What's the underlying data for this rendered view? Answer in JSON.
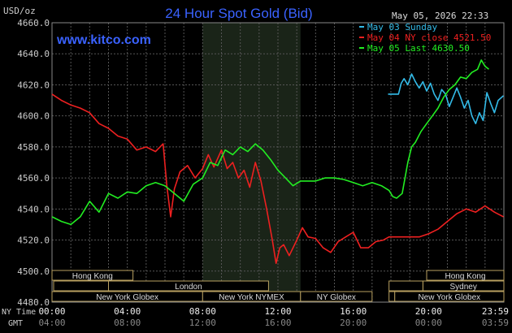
{
  "chart_data": {
    "type": "line",
    "title": "24 Hour Spot Gold (Bid)",
    "website": "www.kitco.com",
    "ylabel": "USD/oz",
    "timestamp": "May 05, 2026 22:33",
    "ylim": [
      4480,
      4660
    ],
    "y_ticks": [
      "4660.0",
      "4640.0",
      "4620.0",
      "4600.0",
      "4580.0",
      "4560.0",
      "4540.0",
      "4520.0",
      "4500.0",
      "4480.0"
    ],
    "xlim": [
      0,
      24
    ],
    "x_ticks_ny": [
      "00:00",
      "04:00",
      "08:00",
      "12:00",
      "16:00",
      "20:00",
      "23:59"
    ],
    "x_ticks_gmt": [
      "04:00",
      "08:00",
      "12:00",
      "16:00",
      "20:00",
      "00:00",
      "03:59"
    ],
    "x_tick_positions": [
      0,
      4,
      8,
      12,
      16,
      20,
      23.98
    ],
    "x_row_labels": {
      "ny": "NY Time",
      "gmt": "GMT"
    },
    "grid": true,
    "legend_position": "top-right",
    "shaded_session": [
      8.0,
      13.2
    ],
    "series": [
      {
        "name": "May 03 Sunday",
        "legend": "May 03 Sunday",
        "color": "#33bbe8",
        "x": [
          17.85,
          18.4,
          18.55,
          18.7,
          18.9,
          19.1,
          19.3,
          19.5,
          19.7,
          19.9,
          20.1,
          20.3,
          20.5,
          20.7,
          20.9,
          21.1,
          21.3,
          21.5,
          21.7,
          21.9,
          22.1,
          22.3,
          22.5,
          22.7,
          22.9,
          23.1,
          23.3,
          23.5,
          23.7,
          23.98
        ],
        "values": [
          4614,
          4614,
          4621,
          4624,
          4620,
          4627,
          4622,
          4618,
          4622,
          4616,
          4621,
          4614,
          4610,
          4617,
          4614,
          4606,
          4612,
          4618,
          4612,
          4605,
          4610,
          4600,
          4595,
          4602,
          4597,
          4615,
          4608,
          4602,
          4610,
          4613
        ]
      },
      {
        "name": "May 04 NY close 4521.50",
        "legend": "May 04 NY close 4521.50",
        "color": "#ee2020",
        "x": [
          0,
          0.5,
          1.0,
          1.5,
          2.0,
          2.5,
          3.0,
          3.5,
          4.0,
          4.5,
          5.0,
          5.5,
          5.9,
          6.1,
          6.3,
          6.5,
          6.8,
          7.2,
          7.6,
          8.0,
          8.3,
          8.6,
          9.0,
          9.3,
          9.6,
          9.9,
          10.2,
          10.5,
          10.8,
          11.1,
          11.4,
          11.7,
          11.9,
          12.1,
          12.3,
          12.6,
          13.0,
          13.3,
          13.6,
          14.0,
          14.4,
          14.8,
          15.2,
          15.6,
          16.0,
          16.4,
          16.8,
          17.2,
          17.6,
          17.9,
          18.3,
          18.7,
          19.1,
          19.5,
          20.0,
          20.5,
          21.0,
          21.5,
          22.0,
          22.5,
          23.0,
          23.5,
          23.98
        ],
        "values": [
          4614,
          4610,
          4607,
          4605,
          4602,
          4595,
          4592,
          4587,
          4585,
          4578,
          4580,
          4577,
          4582,
          4555,
          4535,
          4553,
          4564,
          4568,
          4560,
          4566,
          4575,
          4567,
          4578,
          4566,
          4570,
          4560,
          4565,
          4554,
          4570,
          4558,
          4540,
          4520,
          4505,
          4515,
          4517,
          4510,
          4520,
          4528,
          4522,
          4521,
          4515,
          4512,
          4519,
          4522,
          4525,
          4515,
          4515,
          4519,
          4520,
          4522,
          4522,
          4522,
          4522,
          4522,
          4524,
          4527,
          4532,
          4537,
          4540,
          4538,
          4542,
          4538,
          4535
        ]
      },
      {
        "name": "May 05 Last 4630.50",
        "legend": "May 05 Last 4630.50",
        "color": "#22ee22",
        "x": [
          0,
          0.5,
          1.0,
          1.5,
          2.0,
          2.5,
          3.0,
          3.5,
          4.0,
          4.5,
          5.0,
          5.5,
          6.0,
          6.5,
          7.0,
          7.5,
          8.0,
          8.4,
          8.8,
          9.2,
          9.6,
          10.0,
          10.4,
          10.8,
          11.2,
          11.6,
          12.0,
          12.4,
          12.8,
          13.2,
          13.6,
          14.0,
          14.5,
          15.0,
          15.5,
          16.0,
          16.5,
          17.0,
          17.5,
          17.9,
          18.1,
          18.3,
          18.6,
          18.9,
          19.1,
          19.3,
          19.6,
          19.9,
          20.2,
          20.5,
          20.8,
          21.1,
          21.4,
          21.7,
          22.0,
          22.3,
          22.6,
          22.8,
          23.0,
          23.2
        ],
        "values": [
          4535,
          4532,
          4530,
          4535,
          4545,
          4538,
          4550,
          4547,
          4551,
          4550,
          4555,
          4557,
          4555,
          4550,
          4545,
          4556,
          4560,
          4570,
          4568,
          4578,
          4575,
          4580,
          4577,
          4582,
          4578,
          4572,
          4565,
          4560,
          4555,
          4558,
          4558,
          4558,
          4560,
          4560,
          4559,
          4557,
          4555,
          4557,
          4555,
          4552,
          4548,
          4547,
          4550,
          4570,
          4580,
          4583,
          4590,
          4595,
          4600,
          4605,
          4612,
          4617,
          4620,
          4625,
          4624,
          4628,
          4630,
          4636,
          4632,
          4630
        ]
      }
    ]
  },
  "market_bars": {
    "rows": [
      [
        {
          "label": "Hong Kong",
          "start": -0.3,
          "end": 4.3
        },
        {
          "label": "Hong Kong",
          "start": 19.9,
          "end": 24.0
        }
      ],
      [
        {
          "label": "London",
          "start": 3.0,
          "end": 11.5
        },
        {
          "label": "Sydney",
          "start": 19.7,
          "end": 24.0
        }
      ],
      [
        {
          "label": "New York Globex",
          "start": 0,
          "end": 8.0
        },
        {
          "label": "New York NYMEX",
          "start": 8.0,
          "end": 13.2
        },
        {
          "label": "NY Globex",
          "start": 13.2,
          "end": 17.0
        },
        {
          "label": "New York Globex",
          "start": 18.2,
          "end": 24.0
        }
      ]
    ]
  },
  "colors": {
    "background": "#000000",
    "grid": "#555555",
    "axis_text": "#cccccc",
    "title": "#3a62ff",
    "website": "#3a62ff",
    "market_bar_border": "#b8a060",
    "market_bar_text": "#dddddd",
    "session_shade": "#1a2418"
  }
}
